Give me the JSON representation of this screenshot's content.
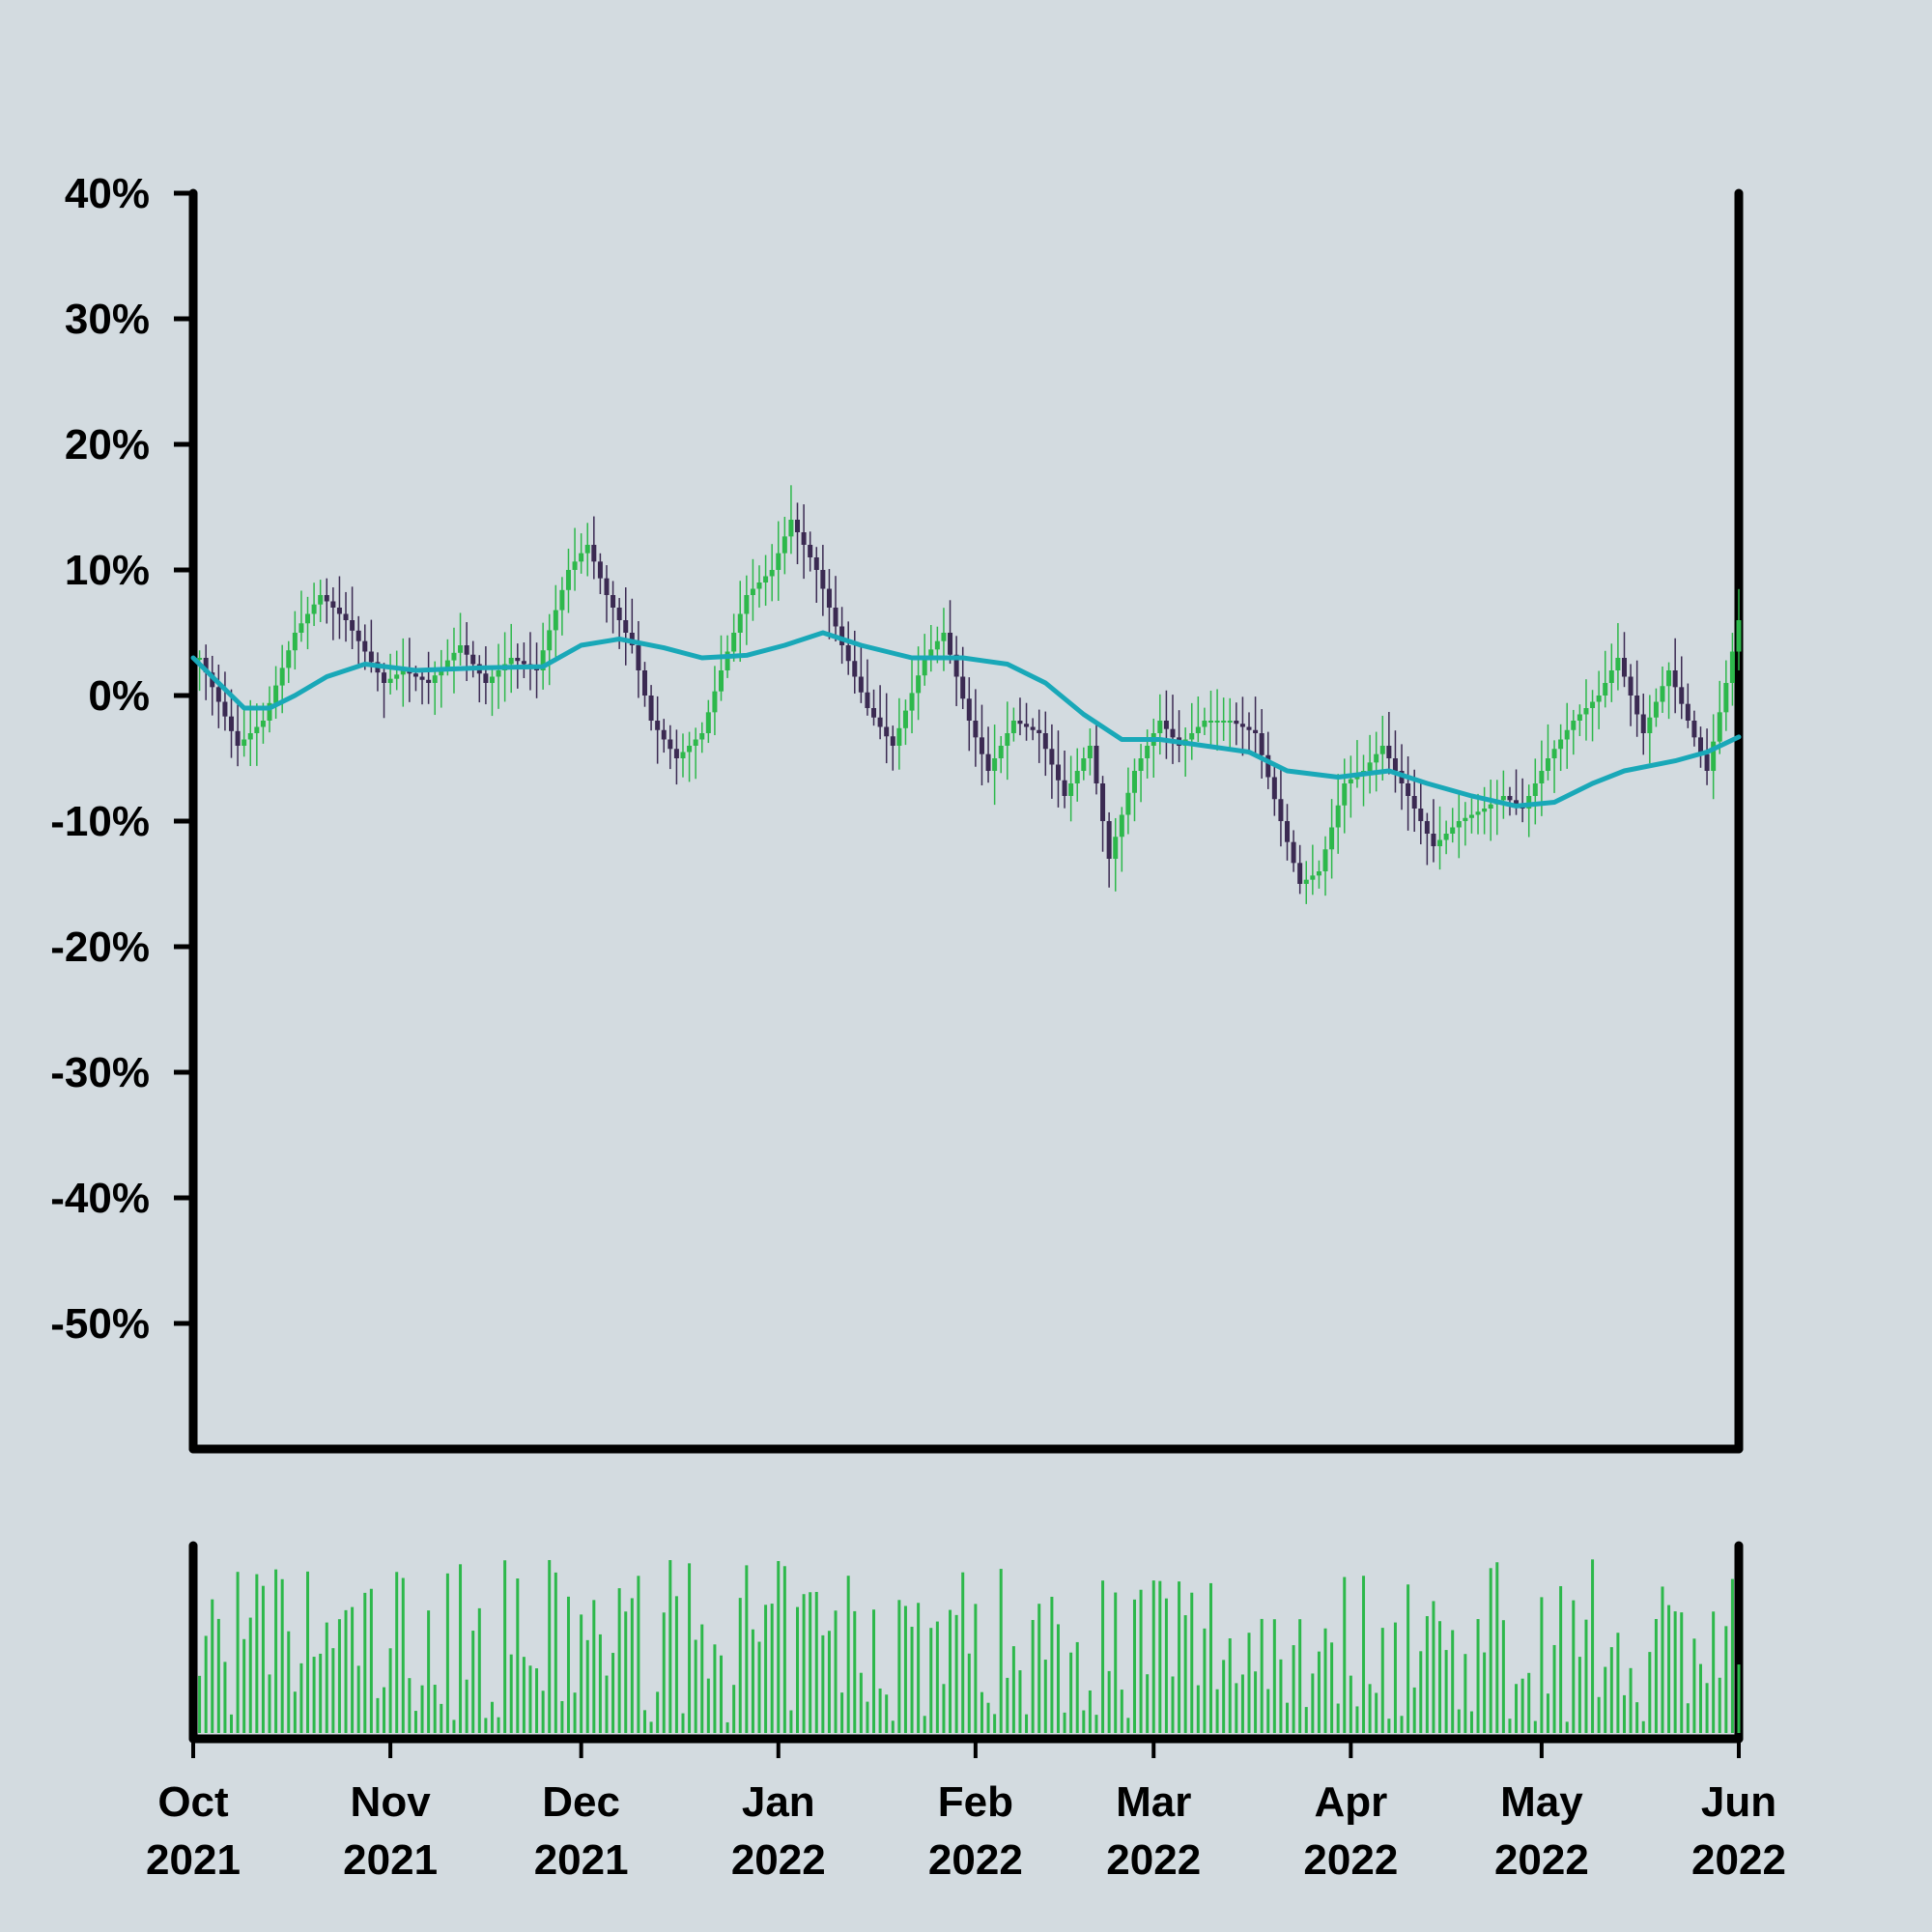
{
  "chart_data": {
    "type": "candlestick",
    "title": "",
    "xlabel": "",
    "ylabel": "",
    "ylim": [
      -60,
      40
    ],
    "y_ticks": [
      "40%",
      "30%",
      "20%",
      "10%",
      "0%",
      "-10%",
      "-20%",
      "-30%",
      "-40%",
      "-50%"
    ],
    "y_tick_values": [
      40,
      30,
      20,
      10,
      0,
      -10,
      -20,
      -30,
      -40,
      -50
    ],
    "x_ticks": [
      {
        "date": "2021-10-01",
        "label_month": "Oct",
        "label_year": "2021"
      },
      {
        "date": "2021-11-01",
        "label_month": "Nov",
        "label_year": "2021"
      },
      {
        "date": "2021-12-01",
        "label_month": "Dec",
        "label_year": "2021"
      },
      {
        "date": "2022-01-01",
        "label_month": "Jan",
        "label_year": "2022"
      },
      {
        "date": "2022-02-01",
        "label_month": "Feb",
        "label_year": "2022"
      },
      {
        "date": "2022-03-01",
        "label_month": "Mar",
        "label_year": "2022"
      },
      {
        "date": "2022-04-01",
        "label_month": "Apr",
        "label_year": "2022"
      },
      {
        "date": "2022-05-01",
        "label_month": "May",
        "label_year": "2022"
      },
      {
        "date": "2022-06-01",
        "label_month": "Jun",
        "label_year": "2022"
      }
    ],
    "x_range": [
      "2021-10-01",
      "2022-06-01"
    ],
    "grid": false,
    "series": [
      {
        "kind": "close",
        "values": [
          [
            "2021-10-02",
            3
          ],
          [
            "2021-10-08",
            -4
          ],
          [
            "2021-10-12",
            -2
          ],
          [
            "2021-10-17",
            5
          ],
          [
            "2021-10-21",
            8
          ],
          [
            "2021-10-25",
            6
          ],
          [
            "2021-10-31",
            1
          ],
          [
            "2021-11-03",
            2
          ],
          [
            "2021-11-07",
            1
          ],
          [
            "2021-11-12",
            4
          ],
          [
            "2021-11-16",
            1
          ],
          [
            "2021-11-20",
            3
          ],
          [
            "2021-11-24",
            2
          ],
          [
            "2021-11-29",
            10
          ],
          [
            "2021-12-02",
            12
          ],
          [
            "2021-12-05",
            8
          ],
          [
            "2021-12-09",
            4
          ],
          [
            "2021-12-12",
            -2
          ],
          [
            "2021-12-16",
            -5
          ],
          [
            "2021-12-20",
            -3
          ],
          [
            "2021-12-23",
            2
          ],
          [
            "2021-12-27",
            8
          ],
          [
            "2021-12-31",
            10
          ],
          [
            "2022-01-03",
            14
          ],
          [
            "2022-01-07",
            10
          ],
          [
            "2022-01-11",
            4
          ],
          [
            "2022-01-15",
            -1
          ],
          [
            "2022-01-19",
            -4
          ],
          [
            "2022-01-24",
            3
          ],
          [
            "2022-01-27",
            5
          ],
          [
            "2022-01-31",
            -2
          ],
          [
            "2022-02-03",
            -6
          ],
          [
            "2022-02-07",
            -2
          ],
          [
            "2022-02-11",
            -3
          ],
          [
            "2022-02-15",
            -8
          ],
          [
            "2022-02-19",
            -4
          ],
          [
            "2022-02-22",
            -13
          ],
          [
            "2022-02-26",
            -6
          ],
          [
            "2022-03-02",
            -2
          ],
          [
            "2022-03-05",
            -4
          ],
          [
            "2022-03-09",
            -2
          ],
          [
            "2022-03-13",
            -2
          ],
          [
            "2022-03-17",
            -3
          ],
          [
            "2022-03-21",
            -10
          ],
          [
            "2022-03-24",
            -15
          ],
          [
            "2022-03-27",
            -14
          ],
          [
            "2022-03-31",
            -7
          ],
          [
            "2022-04-03",
            -6
          ],
          [
            "2022-04-06",
            -4
          ],
          [
            "2022-04-10",
            -8
          ],
          [
            "2022-04-14",
            -12
          ],
          [
            "2022-04-18",
            -10
          ],
          [
            "2022-04-22",
            -9
          ],
          [
            "2022-04-25",
            -8
          ],
          [
            "2022-04-28",
            -9
          ],
          [
            "2022-05-02",
            -5
          ],
          [
            "2022-05-06",
            -2
          ],
          [
            "2022-05-10",
            0
          ],
          [
            "2022-05-13",
            3
          ],
          [
            "2022-05-17",
            -3
          ],
          [
            "2022-05-21",
            2
          ],
          [
            "2022-05-24",
            -2
          ],
          [
            "2022-05-27",
            -6
          ],
          [
            "2022-05-30",
            1
          ],
          [
            "2022-06-01",
            6
          ]
        ]
      },
      {
        "kind": "moving_average",
        "values": [
          [
            "2021-10-01",
            3
          ],
          [
            "2021-10-05",
            1
          ],
          [
            "2021-10-09",
            -1
          ],
          [
            "2021-10-13",
            -1
          ],
          [
            "2021-10-17",
            0
          ],
          [
            "2021-10-22",
            1.5
          ],
          [
            "2021-10-28",
            2.5
          ],
          [
            "2021-11-05",
            2
          ],
          [
            "2021-11-15",
            2.2
          ],
          [
            "2021-11-25",
            2.3
          ],
          [
            "2021-12-01",
            4
          ],
          [
            "2021-12-07",
            4.5
          ],
          [
            "2021-12-14",
            3.8
          ],
          [
            "2021-12-20",
            3
          ],
          [
            "2021-12-27",
            3.2
          ],
          [
            "2022-01-02",
            4
          ],
          [
            "2022-01-08",
            5
          ],
          [
            "2022-01-14",
            4
          ],
          [
            "2022-01-22",
            3
          ],
          [
            "2022-01-30",
            3
          ],
          [
            "2022-02-06",
            2.5
          ],
          [
            "2022-02-12",
            1
          ],
          [
            "2022-02-18",
            -1.5
          ],
          [
            "2022-02-24",
            -3.5
          ],
          [
            "2022-03-02",
            -3.5
          ],
          [
            "2022-03-09",
            -4
          ],
          [
            "2022-03-16",
            -4.5
          ],
          [
            "2022-03-22",
            -6
          ],
          [
            "2022-03-30",
            -6.5
          ],
          [
            "2022-04-07",
            -6
          ],
          [
            "2022-04-13",
            -7
          ],
          [
            "2022-04-20",
            -8
          ],
          [
            "2022-04-27",
            -8.8
          ],
          [
            "2022-05-03",
            -8.5
          ],
          [
            "2022-05-09",
            -7
          ],
          [
            "2022-05-14",
            -6
          ],
          [
            "2022-05-22",
            -5.2
          ],
          [
            "2022-05-27",
            -4.5
          ],
          [
            "2022-06-01",
            -3.3
          ]
        ]
      }
    ],
    "colors": {
      "up": "#2db84b",
      "down": "#3b2a52",
      "moving_average": "#19a8b8",
      "volume": "#2db84b",
      "axis": "#000000",
      "background": "#d3dbe0"
    }
  }
}
